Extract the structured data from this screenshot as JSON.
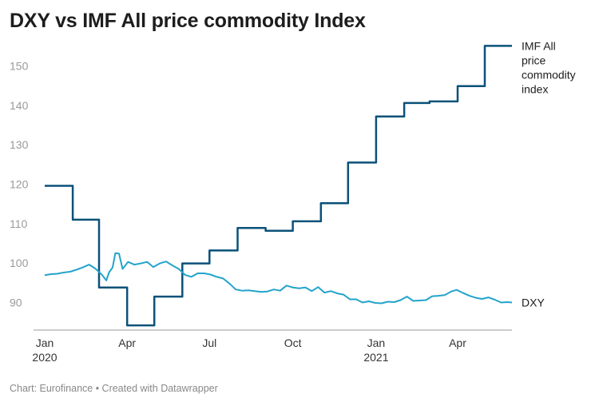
{
  "chart_title": "DXY vs IMF All price commodity Index",
  "footer": "Chart: Eurofinance • Created with Datawrapper",
  "colors": {
    "imf": "#0b5179",
    "dxy": "#24a3cb",
    "axis": "#9a9a9a"
  },
  "chart_data": {
    "type": "line",
    "title": "DXY vs IMF All price commodity Index",
    "x_range": [
      "2020-01-01",
      "2021-05-31"
    ],
    "ylim": [
      83,
      157
    ],
    "y_ticks": [
      90,
      100,
      110,
      120,
      130,
      140,
      150
    ],
    "x_ticks": [
      {
        "date": "2020-01-01",
        "label": "Jan",
        "sublabel": "2020"
      },
      {
        "date": "2020-04-01",
        "label": "Apr",
        "sublabel": ""
      },
      {
        "date": "2020-07-01",
        "label": "Jul",
        "sublabel": ""
      },
      {
        "date": "2020-10-01",
        "label": "Oct",
        "sublabel": ""
      },
      {
        "date": "2021-01-01",
        "label": "Jan",
        "sublabel": "2021"
      },
      {
        "date": "2021-04-01",
        "label": "Apr",
        "sublabel": ""
      }
    ],
    "grid": false,
    "series": [
      {
        "name": "IMF All price commodity index",
        "label_lines": [
          "IMF All",
          "price",
          "commodity",
          "index"
        ],
        "step": true,
        "points": [
          [
            "2020-01-01",
            119.6
          ],
          [
            "2020-02-01",
            111.0
          ],
          [
            "2020-03-01",
            93.8
          ],
          [
            "2020-04-01",
            84.2
          ],
          [
            "2020-05-01",
            91.5
          ],
          [
            "2020-06-01",
            99.9
          ],
          [
            "2020-07-01",
            103.2
          ],
          [
            "2020-08-01",
            108.9
          ],
          [
            "2020-09-01",
            108.2
          ],
          [
            "2020-10-01",
            110.6
          ],
          [
            "2020-11-01",
            115.2
          ],
          [
            "2020-12-01",
            125.5
          ],
          [
            "2021-01-01",
            137.2
          ],
          [
            "2021-02-01",
            140.6
          ],
          [
            "2021-03-01",
            141.0
          ],
          [
            "2021-04-01",
            144.9
          ],
          [
            "2021-05-01",
            155.1
          ]
        ],
        "end_date": "2021-05-31"
      },
      {
        "name": "DXY",
        "label_lines": [
          "DXY"
        ],
        "step": false,
        "points": [
          [
            "2020-01-01",
            96.9
          ],
          [
            "2020-01-08",
            97.2
          ],
          [
            "2020-01-15",
            97.3
          ],
          [
            "2020-01-22",
            97.6
          ],
          [
            "2020-01-29",
            97.8
          ],
          [
            "2020-02-05",
            98.3
          ],
          [
            "2020-02-12",
            98.9
          ],
          [
            "2020-02-19",
            99.6
          ],
          [
            "2020-02-26",
            98.6
          ],
          [
            "2020-03-04",
            97.1
          ],
          [
            "2020-03-09",
            95.6
          ],
          [
            "2020-03-12",
            97.6
          ],
          [
            "2020-03-16",
            98.9
          ],
          [
            "2020-03-19",
            102.5
          ],
          [
            "2020-03-23",
            102.4
          ],
          [
            "2020-03-27",
            98.5
          ],
          [
            "2020-04-02",
            100.3
          ],
          [
            "2020-04-09",
            99.6
          ],
          [
            "2020-04-16",
            99.9
          ],
          [
            "2020-04-23",
            100.3
          ],
          [
            "2020-04-30",
            99.0
          ],
          [
            "2020-05-07",
            99.9
          ],
          [
            "2020-05-14",
            100.4
          ],
          [
            "2020-05-21",
            99.4
          ],
          [
            "2020-05-28",
            98.5
          ],
          [
            "2020-06-04",
            97.0
          ],
          [
            "2020-06-11",
            96.5
          ],
          [
            "2020-06-18",
            97.4
          ],
          [
            "2020-06-25",
            97.4
          ],
          [
            "2020-07-02",
            97.1
          ],
          [
            "2020-07-09",
            96.5
          ],
          [
            "2020-07-16",
            96.1
          ],
          [
            "2020-07-23",
            94.8
          ],
          [
            "2020-07-30",
            93.3
          ],
          [
            "2020-08-06",
            93.0
          ],
          [
            "2020-08-13",
            93.1
          ],
          [
            "2020-08-20",
            92.9
          ],
          [
            "2020-08-27",
            92.7
          ],
          [
            "2020-09-03",
            92.8
          ],
          [
            "2020-09-10",
            93.3
          ],
          [
            "2020-09-17",
            93.0
          ],
          [
            "2020-09-24",
            94.3
          ],
          [
            "2020-10-01",
            93.8
          ],
          [
            "2020-10-08",
            93.6
          ],
          [
            "2020-10-15",
            93.8
          ],
          [
            "2020-10-22",
            92.9
          ],
          [
            "2020-10-29",
            93.9
          ],
          [
            "2020-11-05",
            92.5
          ],
          [
            "2020-11-12",
            92.9
          ],
          [
            "2020-11-19",
            92.3
          ],
          [
            "2020-11-26",
            92.0
          ],
          [
            "2020-12-03",
            90.8
          ],
          [
            "2020-12-10",
            90.8
          ],
          [
            "2020-12-17",
            90.0
          ],
          [
            "2020-12-24",
            90.3
          ],
          [
            "2020-12-31",
            89.9
          ],
          [
            "2021-01-07",
            89.8
          ],
          [
            "2021-01-14",
            90.2
          ],
          [
            "2021-01-21",
            90.1
          ],
          [
            "2021-01-28",
            90.6
          ],
          [
            "2021-02-04",
            91.5
          ],
          [
            "2021-02-11",
            90.4
          ],
          [
            "2021-02-18",
            90.5
          ],
          [
            "2021-02-25",
            90.6
          ],
          [
            "2021-03-04",
            91.6
          ],
          [
            "2021-03-11",
            91.7
          ],
          [
            "2021-03-18",
            91.9
          ],
          [
            "2021-03-25",
            92.8
          ],
          [
            "2021-03-31",
            93.2
          ],
          [
            "2021-04-07",
            92.4
          ],
          [
            "2021-04-14",
            91.7
          ],
          [
            "2021-04-21",
            91.2
          ],
          [
            "2021-04-28",
            90.9
          ],
          [
            "2021-05-05",
            91.3
          ],
          [
            "2021-05-12",
            90.7
          ],
          [
            "2021-05-19",
            90.0
          ],
          [
            "2021-05-26",
            90.1
          ],
          [
            "2021-05-31",
            90.0
          ]
        ]
      }
    ]
  }
}
